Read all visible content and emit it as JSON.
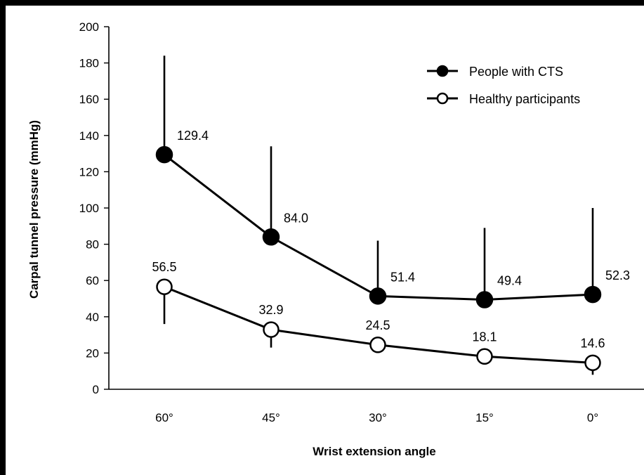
{
  "chart_data": {
    "type": "line",
    "title": "",
    "xlabel": "Wrist extension angle",
    "ylabel": "Carpal tunnel pressure (mmHg)",
    "categories": [
      "60°",
      "45°",
      "30°",
      "15°",
      "0°"
    ],
    "ylim": [
      0,
      200
    ],
    "yticks": [
      0,
      20,
      40,
      60,
      80,
      100,
      120,
      140,
      160,
      180,
      200
    ],
    "grid": false,
    "legend_position": "top-right",
    "series": [
      {
        "name": "People with CTS",
        "marker": "filled-circle",
        "color": "#000000",
        "values": [
          129.4,
          84.0,
          51.4,
          49.4,
          52.3
        ],
        "value_labels": [
          "129.4",
          "84.0",
          "51.4",
          "49.4",
          "52.3"
        ],
        "error_upper": [
          184,
          134,
          82,
          89,
          100
        ]
      },
      {
        "name": "Healthy participants",
        "marker": "open-circle",
        "color": "#000000",
        "values": [
          56.5,
          32.9,
          24.5,
          18.1,
          14.6
        ],
        "value_labels": [
          "56.5",
          "32.9",
          "24.5",
          "18.1",
          "14.6"
        ],
        "error_lower": [
          36,
          23,
          24.5,
          18.1,
          8
        ]
      }
    ]
  }
}
